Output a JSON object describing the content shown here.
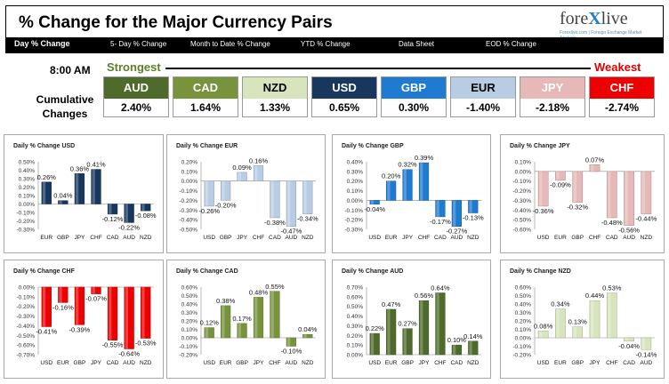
{
  "header": {
    "title": "% Change for the Major Currency Pairs"
  },
  "logo": {
    "text_a": "fore",
    "text_b": "X",
    "text_c": "live",
    "tagline": "Forexlive.com | Foreign Exchange Market Analysis"
  },
  "nav": [
    "Day % Change",
    "5- Day % Change",
    "Month to Date % Change",
    "YTD % Change",
    "Data Sheet",
    "EOD % Change"
  ],
  "timestamp": "8:00 AM",
  "strongest_label": "Strongest",
  "weakest_label": "Weakest",
  "cumulative_label": "Cumulative Changes",
  "ranking": [
    {
      "name": "AUD",
      "value": "2.40%",
      "bg": "#4e6b2b",
      "fg": "#ffffff"
    },
    {
      "name": "CAD",
      "value": "1.64%",
      "bg": "#77933c",
      "fg": "#ffffff"
    },
    {
      "name": "NZD",
      "value": "1.33%",
      "bg": "#d7e4bc",
      "fg": "#000000"
    },
    {
      "name": "USD",
      "value": "0.65%",
      "bg": "#17375e",
      "fg": "#ffffff"
    },
    {
      "name": "GBP",
      "value": "0.30%",
      "bg": "#1f7ad2",
      "fg": "#ffffff"
    },
    {
      "name": "EUR",
      "value": "-1.40%",
      "bg": "#b8cce4",
      "fg": "#000000"
    },
    {
      "name": "JPY",
      "value": "-2.18%",
      "bg": "#e6b8b7",
      "fg": "#ffffff"
    },
    {
      "name": "CHF",
      "value": "-2.74%",
      "bg": "#ee0000",
      "fg": "#ffffff"
    }
  ],
  "chart_data": [
    {
      "type": "bar",
      "title": "Daily % Change USD",
      "categories": [
        "EUR",
        "GBP",
        "JPY",
        "CHF",
        "CAD",
        "AUD",
        "NZD"
      ],
      "values": [
        0.26,
        0.04,
        0.36,
        0.41,
        -0.12,
        -0.22,
        -0.08
      ],
      "labels": [
        "0.26%",
        "0.04%",
        "0.36%",
        "0.41%",
        "-0.12%",
        "-0.22%",
        "-0.08%"
      ],
      "ylim": [
        -0.3,
        0.5
      ],
      "ticks": [
        "0.50%",
        "0.40%",
        "0.30%",
        "0.20%",
        "0.10%",
        "0.00%",
        "-0.10%",
        "-0.20%",
        "-0.30%"
      ],
      "color": "#17375e"
    },
    {
      "type": "bar",
      "title": "Daily % Change EUR",
      "categories": [
        "USD",
        "GBP",
        "JPY",
        "CHF",
        "CAD",
        "AUD",
        "NZD"
      ],
      "values": [
        -0.26,
        -0.2,
        0.09,
        0.16,
        -0.38,
        -0.47,
        -0.34
      ],
      "labels": [
        "-0.26%",
        "-0.20%",
        "0.09%",
        "0.16%",
        "-0.38%",
        "-0.47%",
        "-0.34%"
      ],
      "ylim": [
        -0.5,
        0.2
      ],
      "ticks": [
        "0.20%",
        "0.10%",
        "0.00%",
        "-0.10%",
        "-0.20%",
        "-0.30%",
        "-0.40%",
        "-0.50%"
      ],
      "color": "#b8cce4"
    },
    {
      "type": "bar",
      "title": "Daily % Change GBP",
      "categories": [
        "USD",
        "EUR",
        "JPY",
        "CHF",
        "CAD",
        "AUD",
        "NZD"
      ],
      "values": [
        -0.04,
        0.2,
        0.32,
        0.39,
        -0.17,
        -0.27,
        -0.13
      ],
      "labels": [
        "-0.04%",
        "0.20%",
        "0.32%",
        "0.39%",
        "-0.17%",
        "-0.27%",
        "-0.13%"
      ],
      "ylim": [
        -0.3,
        0.4
      ],
      "ticks": [
        "0.40%",
        "0.30%",
        "0.20%",
        "0.10%",
        "0.00%",
        "-0.10%",
        "-0.20%",
        "-0.30%"
      ],
      "color": "#1f7ad2"
    },
    {
      "type": "bar",
      "title": "Daily % Change JPY",
      "categories": [
        "USD",
        "EUR",
        "GBP",
        "CHF",
        "CAD",
        "AUD",
        "NZD"
      ],
      "values": [
        -0.36,
        -0.09,
        -0.32,
        0.07,
        -0.48,
        -0.56,
        -0.44
      ],
      "labels": [
        "-0.36%",
        "-0.09%",
        "-0.32%",
        "0.07%",
        "-0.48%",
        "-0.56%",
        "-0.44%"
      ],
      "ylim": [
        -0.6,
        0.1
      ],
      "ticks": [
        "0.10%",
        "0.00%",
        "-0.10%",
        "-0.20%",
        "-0.30%",
        "-0.40%",
        "-0.50%",
        "-0.60%"
      ],
      "color": "#e6b8b7"
    },
    {
      "type": "bar",
      "title": "Daily % Change CHF",
      "categories": [
        "USD",
        "EUR",
        "GBP",
        "JPY",
        "CAD",
        "AUD",
        "NZD"
      ],
      "values": [
        -0.41,
        -0.16,
        -0.39,
        -0.07,
        -0.55,
        -0.64,
        -0.53
      ],
      "labels": [
        "-0.41%",
        "-0.16%",
        "-0.39%",
        "-0.07%",
        "-0.55%",
        "-0.64%",
        "-0.53%"
      ],
      "ylim": [
        -0.7,
        0.0
      ],
      "ticks": [
        "0.00%",
        "-0.10%",
        "-0.20%",
        "-0.30%",
        "-0.40%",
        "-0.50%",
        "-0.60%",
        "-0.70%"
      ],
      "color": "#ee0000"
    },
    {
      "type": "bar",
      "title": "Daily % Change CAD",
      "categories": [
        "USD",
        "EUR",
        "GBP",
        "JPY",
        "CHF",
        "AUD",
        "NZD"
      ],
      "values": [
        0.12,
        0.38,
        0.17,
        0.48,
        0.55,
        -0.1,
        0.04
      ],
      "labels": [
        "0.12%",
        "0.38%",
        "0.17%",
        "0.48%",
        "0.55%",
        "-0.10%",
        "0.04%"
      ],
      "ylim": [
        -0.2,
        0.6
      ],
      "ticks": [
        "0.60%",
        "0.50%",
        "0.40%",
        "0.30%",
        "0.20%",
        "0.10%",
        "0.00%",
        "-0.10%",
        "-0.20%"
      ],
      "color": "#77933c"
    },
    {
      "type": "bar",
      "title": "Daily % Change AUD",
      "categories": [
        "USD",
        "EUR",
        "GBP",
        "JPY",
        "CHF",
        "CAD",
        "NZD"
      ],
      "values": [
        0.22,
        0.47,
        0.27,
        0.56,
        0.64,
        0.1,
        0.14
      ],
      "labels": [
        "0.22%",
        "0.47%",
        "0.27%",
        "0.56%",
        "0.64%",
        "0.10%",
        "0.14%"
      ],
      "ylim": [
        0.0,
        0.7
      ],
      "ticks": [
        "0.70%",
        "0.60%",
        "0.50%",
        "0.40%",
        "0.30%",
        "0.20%",
        "0.10%",
        "0.00%"
      ],
      "color": "#4e6b2b"
    },
    {
      "type": "bar",
      "title": "Daily % Change NZD",
      "categories": [
        "USD",
        "EUR",
        "GBP",
        "JPY",
        "CHF",
        "CAD",
        "AUD"
      ],
      "values": [
        0.08,
        0.34,
        0.13,
        0.44,
        0.53,
        -0.04,
        -0.14
      ],
      "labels": [
        "0.08%",
        "0.34%",
        "0.13%",
        "0.44%",
        "0.53%",
        "-0.04%",
        "-0.14%"
      ],
      "ylim": [
        -0.2,
        0.6
      ],
      "ticks": [
        "0.60%",
        "0.50%",
        "0.40%",
        "0.30%",
        "0.20%",
        "0.10%",
        "0.00%",
        "-0.10%",
        "-0.20%"
      ],
      "color": "#d7e4bc"
    }
  ]
}
